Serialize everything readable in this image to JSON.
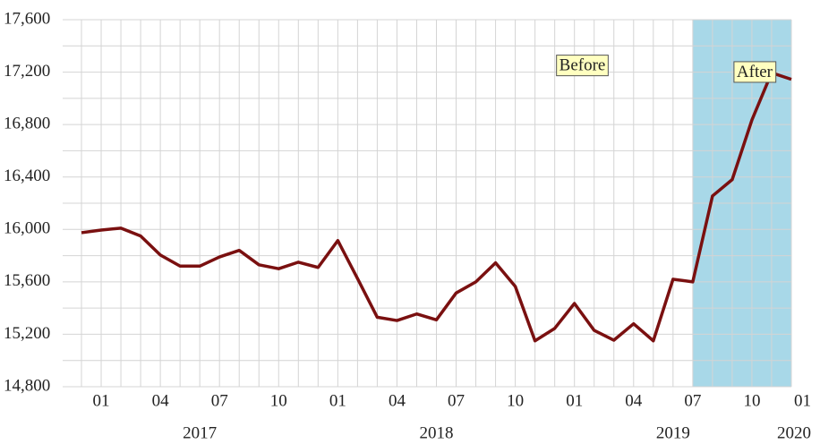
{
  "chart_data": {
    "type": "line",
    "categories": [
      null,
      "01",
      null,
      null,
      "04",
      null,
      null,
      "07",
      null,
      null,
      "10",
      null,
      null,
      "01",
      null,
      null,
      "04",
      null,
      null,
      "07",
      null,
      null,
      "10",
      null,
      null,
      "01",
      null,
      null,
      "04",
      null,
      null,
      "07",
      null,
      null,
      "10",
      null,
      null,
      "01"
    ],
    "category_years": [
      null,
      null,
      null,
      null,
      null,
      null,
      "2017",
      null,
      null,
      null,
      null,
      null,
      null,
      null,
      null,
      null,
      null,
      null,
      "2018",
      null,
      null,
      null,
      null,
      null,
      null,
      null,
      null,
      null,
      null,
      null,
      "2019",
      null,
      null,
      null,
      null,
      null,
      null,
      "2020"
    ],
    "series": [
      {
        "name": "value",
        "color": "#7a1010",
        "values": [
          15975,
          15995,
          16010,
          15950,
          15805,
          15720,
          15720,
          15790,
          15840,
          15730,
          15700,
          15750,
          15710,
          15915,
          15625,
          15330,
          15305,
          15355,
          15310,
          15515,
          15600,
          15745,
          15565,
          15150,
          15245,
          15435,
          15230,
          15155,
          15280,
          15150,
          15620,
          15600,
          16255,
          16380,
          16835,
          17195,
          17145,
          null
        ]
      }
    ],
    "ylim": [
      14800,
      17600
    ],
    "yticks": [
      {
        "value": 14800,
        "label": "14,800"
      },
      {
        "value": 15200,
        "label": "15,200"
      },
      {
        "value": 15600,
        "label": "15,600"
      },
      {
        "value": 16000,
        "label": "16,000"
      },
      {
        "value": 16400,
        "label": "16,400"
      },
      {
        "value": 16800,
        "label": "16,800"
      },
      {
        "value": 17200,
        "label": "17,200"
      },
      {
        "value": 17600,
        "label": "17,600"
      }
    ],
    "y_minor_ticks": [
      15000,
      15400,
      15800,
      16200,
      16600,
      17000,
      17400
    ],
    "grid": true,
    "shaded_range": [
      31,
      36
    ],
    "shade_color": "#a8d8e8",
    "annotations": [
      {
        "text": "Before",
        "category": 24,
        "y": 17250
      },
      {
        "text": "After",
        "category": 33,
        "y": 17200
      }
    ]
  }
}
